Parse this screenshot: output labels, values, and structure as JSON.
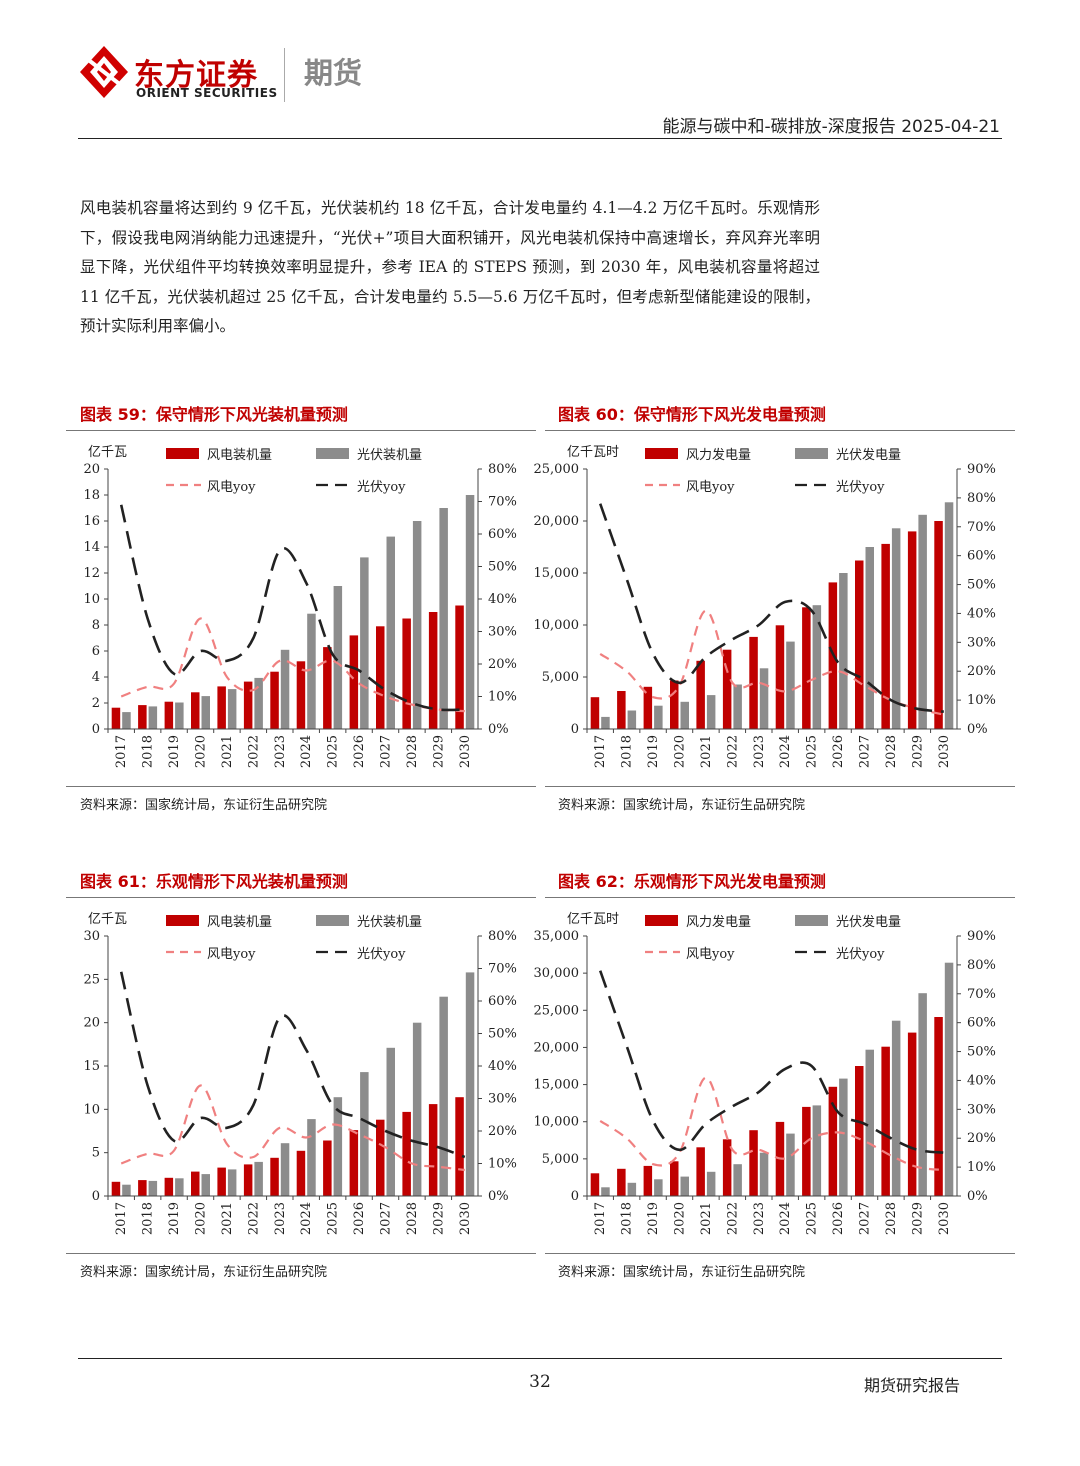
{
  "header": {
    "brand_cn": "东方证券",
    "brand_en": "ORIENT SECURITIES",
    "section": "期货",
    "report_title": "能源与碳中和-碳排放-深度报告 2025-04-21"
  },
  "paragraph": "风电装机容量将达到约 9 亿千瓦，光伏装机约 18 亿千瓦，合计发电量约 4.1—4.2 万亿千瓦时。乐观情形下，假设我电网消纳能力迅速提升，“光伏+”项目大面积铺开，风光电装机保持中高速增长，弃风弃光率明显下降，光伏组件平均转换效率明显提升，参考 IEA 的 STEPS 预测，到 2030 年，风电装机容量将超过 11 亿千瓦，光伏装机超过 25 亿千瓦，合计发电量约 5.5—5.6 万亿千瓦时，但考虑新型储能建设的限制，预计实际利用率偏小。",
  "figures": [
    {
      "title": "图表 59：保守情形下风光装机量预测",
      "source": "资料来源：国家统计局，东证衍生品研究院"
    },
    {
      "title": "图表 60：保守情形下风光发电量预测",
      "source": "资料来源：国家统计局，东证衍生品研究院"
    },
    {
      "title": "图表 61：乐观情形下风光装机量预测",
      "source": "资料来源：国家统计局，东证衍生品研究院"
    },
    {
      "title": "图表 62：乐观情形下风光发电量预测",
      "source": "资料来源：国家统计局，东证衍生品研究院"
    }
  ],
  "chart_data": [
    {
      "type": "bar",
      "categories": [
        "2017",
        "2018",
        "2019",
        "2020",
        "2021",
        "2022",
        "2023",
        "2024",
        "2025",
        "2026",
        "2027",
        "2028",
        "2029",
        "2030"
      ],
      "ylabel": "亿千瓦",
      "ylim": [
        0,
        20
      ],
      "yticks": [
        "0",
        "2",
        "4",
        "6",
        "8",
        "10",
        "12",
        "14",
        "16",
        "18",
        "20"
      ],
      "y2lim": [
        0,
        0.8
      ],
      "y2ticks": [
        "0%",
        "10%",
        "20%",
        "30%",
        "40%",
        "50%",
        "60%",
        "70%",
        "80%"
      ],
      "series": [
        {
          "name": "风电装机量",
          "kind": "bar",
          "color": "#c00000",
          "values": [
            1.64,
            1.84,
            2.1,
            2.82,
            3.28,
            3.65,
            4.41,
            5.21,
            6.3,
            7.2,
            7.9,
            8.5,
            9.0,
            9.5
          ]
        },
        {
          "name": "光伏装机量",
          "kind": "bar",
          "color": "#8c8c8c",
          "values": [
            1.3,
            1.74,
            2.04,
            2.53,
            3.07,
            3.93,
            6.09,
            8.87,
            11.0,
            13.2,
            14.8,
            16.0,
            17.0,
            18.0
          ]
        },
        {
          "name": "风电yoy",
          "kind": "line",
          "axis": "right",
          "color": "#f08080",
          "dash": "10 7",
          "values": [
            0.1,
            0.13,
            0.14,
            0.34,
            0.16,
            0.12,
            0.21,
            0.18,
            0.21,
            0.14,
            0.1,
            0.075,
            0.06,
            0.055
          ]
        },
        {
          "name": "光伏yoy",
          "kind": "line",
          "axis": "right",
          "color": "#222222",
          "dash": "18 9",
          "values": [
            0.69,
            0.34,
            0.17,
            0.24,
            0.21,
            0.28,
            0.55,
            0.45,
            0.23,
            0.18,
            0.12,
            0.08,
            0.06,
            0.06
          ]
        }
      ]
    },
    {
      "type": "bar",
      "categories": [
        "2017",
        "2018",
        "2019",
        "2020",
        "2021",
        "2022",
        "2023",
        "2024",
        "2025",
        "2026",
        "2027",
        "2028",
        "2029",
        "2030"
      ],
      "ylabel": "亿千瓦时",
      "ylim": [
        0,
        25000
      ],
      "yticks": [
        "0",
        "5,000",
        "10,000",
        "15,000",
        "20,000",
        "25,000"
      ],
      "y2lim": [
        0,
        0.9
      ],
      "y2ticks": [
        "0%",
        "10%",
        "20%",
        "30%",
        "40%",
        "50%",
        "60%",
        "70%",
        "80%",
        "90%"
      ],
      "series": [
        {
          "name": "风力发电量",
          "kind": "bar",
          "color": "#c00000",
          "values": [
            3057,
            3658,
            4057,
            4665,
            6556,
            7627,
            8859,
            9970,
            11700,
            14100,
            16200,
            17800,
            19000,
            20000
          ]
        },
        {
          "name": "光伏发电量",
          "kind": "bar",
          "color": "#8c8c8c",
          "values": [
            1166,
            1775,
            2243,
            2611,
            3259,
            4276,
            5833,
            8400,
            11900,
            15000,
            17500,
            19300,
            20600,
            21800
          ]
        },
        {
          "name": "风电yoy",
          "kind": "line",
          "axis": "right",
          "color": "#f08080",
          "dash": "10 7",
          "values": [
            0.26,
            0.2,
            0.11,
            0.15,
            0.41,
            0.16,
            0.16,
            0.13,
            0.17,
            0.2,
            0.15,
            0.1,
            0.07,
            0.05
          ]
        },
        {
          "name": "光伏yoy",
          "kind": "line",
          "axis": "right",
          "color": "#222222",
          "dash": "18 9",
          "values": [
            0.78,
            0.52,
            0.26,
            0.16,
            0.25,
            0.31,
            0.36,
            0.44,
            0.41,
            0.23,
            0.17,
            0.1,
            0.07,
            0.06
          ]
        }
      ]
    },
    {
      "type": "bar",
      "categories": [
        "2017",
        "2018",
        "2019",
        "2020",
        "2021",
        "2022",
        "2023",
        "2024",
        "2025",
        "2026",
        "2027",
        "2028",
        "2029",
        "2030"
      ],
      "ylabel": "亿千瓦",
      "ylim": [
        0,
        30
      ],
      "yticks": [
        "0",
        "5",
        "10",
        "15",
        "20",
        "25",
        "30"
      ],
      "y2lim": [
        0,
        0.8
      ],
      "y2ticks": [
        "0%",
        "10%",
        "20%",
        "30%",
        "40%",
        "50%",
        "60%",
        "70%",
        "80%"
      ],
      "series": [
        {
          "name": "风电装机量",
          "kind": "bar",
          "color": "#c00000",
          "values": [
            1.64,
            1.84,
            2.1,
            2.82,
            3.28,
            3.65,
            4.41,
            5.21,
            6.4,
            7.6,
            8.8,
            9.7,
            10.6,
            11.4
          ]
        },
        {
          "name": "光伏装机量",
          "kind": "bar",
          "color": "#8c8c8c",
          "values": [
            1.3,
            1.74,
            2.04,
            2.53,
            3.07,
            3.93,
            6.09,
            8.87,
            11.4,
            14.3,
            17.1,
            20.0,
            23.0,
            25.8
          ]
        },
        {
          "name": "风电yoy",
          "kind": "line",
          "axis": "right",
          "color": "#f08080",
          "dash": "10 7",
          "values": [
            0.1,
            0.13,
            0.14,
            0.34,
            0.16,
            0.12,
            0.21,
            0.18,
            0.22,
            0.19,
            0.15,
            0.1,
            0.09,
            0.08
          ]
        },
        {
          "name": "光伏yoy",
          "kind": "line",
          "axis": "right",
          "color": "#222222",
          "dash": "18 9",
          "values": [
            0.69,
            0.34,
            0.17,
            0.24,
            0.21,
            0.28,
            0.55,
            0.45,
            0.28,
            0.24,
            0.2,
            0.17,
            0.15,
            0.12
          ]
        }
      ]
    },
    {
      "type": "bar",
      "categories": [
        "2017",
        "2018",
        "2019",
        "2020",
        "2021",
        "2022",
        "2023",
        "2024",
        "2025",
        "2026",
        "2027",
        "2028",
        "2029",
        "2030"
      ],
      "ylabel": "亿千瓦时",
      "ylim": [
        0,
        35000
      ],
      "yticks": [
        "0",
        "5,000",
        "10,000",
        "15,000",
        "20,000",
        "25,000",
        "30,000",
        "35,000"
      ],
      "y2lim": [
        0,
        0.9
      ],
      "y2ticks": [
        "0%",
        "10%",
        "20%",
        "30%",
        "40%",
        "50%",
        "60%",
        "70%",
        "80%",
        "90%"
      ],
      "series": [
        {
          "name": "风力发电量",
          "kind": "bar",
          "color": "#c00000",
          "values": [
            3057,
            3658,
            4057,
            4665,
            6556,
            7627,
            8859,
            9970,
            12000,
            14700,
            17500,
            20100,
            22000,
            24100
          ]
        },
        {
          "name": "光伏发电量",
          "kind": "bar",
          "color": "#8c8c8c",
          "values": [
            1166,
            1775,
            2243,
            2611,
            3259,
            4276,
            5833,
            8400,
            12200,
            15800,
            19700,
            23600,
            27300,
            31400
          ]
        },
        {
          "name": "风电yoy",
          "kind": "line",
          "axis": "right",
          "color": "#f08080",
          "dash": "10 7",
          "values": [
            0.26,
            0.2,
            0.11,
            0.15,
            0.41,
            0.16,
            0.16,
            0.13,
            0.2,
            0.22,
            0.19,
            0.14,
            0.1,
            0.09
          ]
        },
        {
          "name": "光伏yoy",
          "kind": "line",
          "axis": "right",
          "color": "#222222",
          "dash": "18 9",
          "values": [
            0.78,
            0.52,
            0.26,
            0.16,
            0.25,
            0.31,
            0.36,
            0.44,
            0.45,
            0.29,
            0.25,
            0.2,
            0.16,
            0.15
          ]
        }
      ]
    }
  ],
  "footer": {
    "page_number": "32",
    "label": "期货研究报告"
  },
  "colors": {
    "brand_red": "#c00000",
    "bar_gray": "#8c8c8c",
    "line_pink": "#f08080",
    "line_black": "#222222"
  }
}
